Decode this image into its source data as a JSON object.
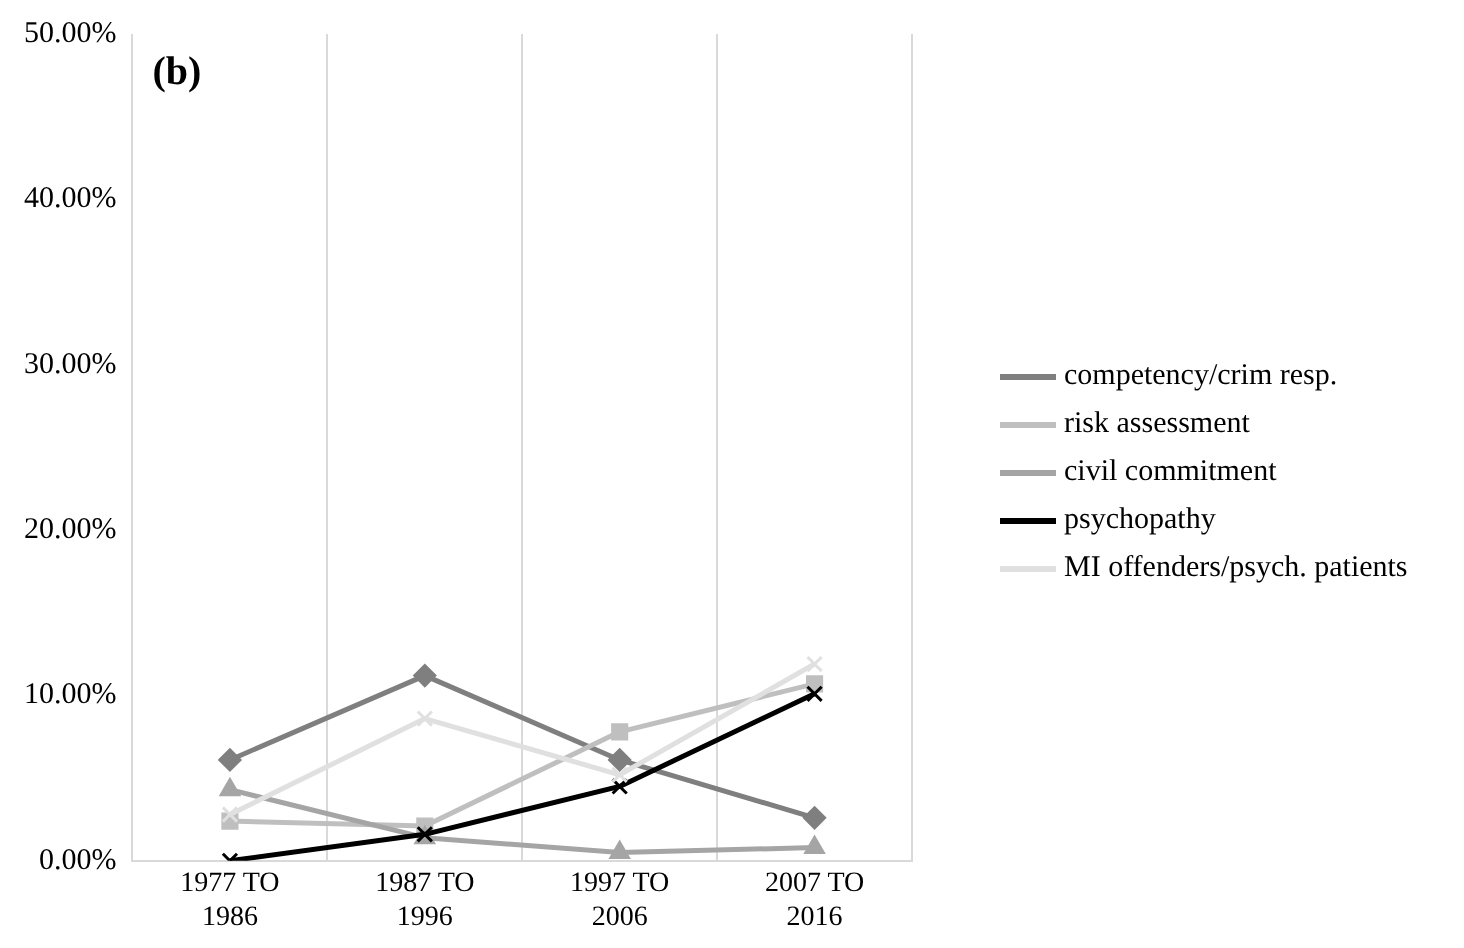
{
  "chart_data": {
    "type": "line",
    "title": "(b)",
    "categories": [
      "1977 TO 1986",
      "1987 TO 1996",
      "1997 TO 2006",
      "2007 TO 2016"
    ],
    "series": [
      {
        "name": "competency/crim resp.",
        "color": "#7f7f7f",
        "marker": "diamond",
        "values": [
          6.1,
          11.2,
          6.1,
          2.6
        ]
      },
      {
        "name": "risk assessment",
        "color": "#bfbfbf",
        "marker": "square",
        "values": [
          2.4,
          2.1,
          7.8,
          10.7
        ]
      },
      {
        "name": "civil commitment",
        "color": "#a5a5a5",
        "marker": "triangle",
        "values": [
          4.3,
          1.4,
          0.5,
          0.8
        ]
      },
      {
        "name": "psychopathy",
        "color": "#000000",
        "marker": "cross",
        "values": [
          0,
          1.6,
          4.5,
          10.1
        ]
      },
      {
        "name": "MI offenders/psych. patients",
        "color": "#e0e0e0",
        "marker": "cross",
        "values": [
          2.8,
          8.6,
          5.2,
          11.9
        ]
      }
    ],
    "ylim": [
      0,
      50
    ],
    "yticks": [
      {
        "value": 0,
        "label": "0.00%"
      },
      {
        "value": 10,
        "label": "10.00%"
      },
      {
        "value": 20,
        "label": "20.00%"
      },
      {
        "value": 30,
        "label": "30.00%"
      },
      {
        "value": 40,
        "label": "40.00%"
      },
      {
        "value": 50,
        "label": "50.00%"
      }
    ],
    "grid": "x",
    "legend": "right",
    "line_style": "solid"
  }
}
